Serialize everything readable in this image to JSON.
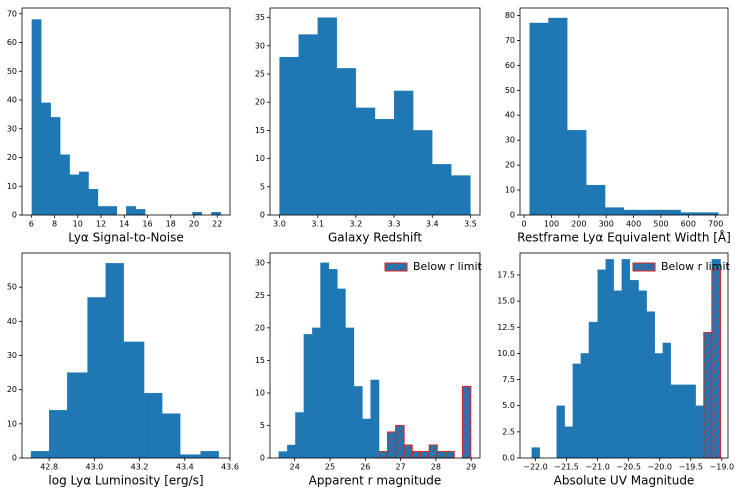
{
  "chart_data": [
    {
      "type": "histogram",
      "xlabel": "Lyα Signal-to-Noise",
      "color": "#1f77b4",
      "bins": [
        6.05,
        6.86,
        7.68,
        8.49,
        9.3,
        10.12,
        10.93,
        11.74,
        12.55,
        13.37,
        14.18,
        14.99,
        15.81,
        16.62,
        17.43,
        18.25,
        19.06,
        19.87,
        20.68,
        21.5,
        22.31
      ],
      "values": [
        68,
        39,
        34,
        21,
        14,
        15,
        9,
        3,
        3,
        0,
        3,
        2,
        0,
        0,
        0,
        0,
        0,
        1,
        0,
        1
      ],
      "xlim": [
        5.2,
        23.1
      ],
      "xticks": [
        6,
        8,
        10,
        12,
        14,
        16,
        18,
        20,
        22
      ],
      "ylim": [
        0,
        72
      ],
      "yticks": [
        0,
        10,
        20,
        30,
        40,
        50,
        60,
        70
      ]
    },
    {
      "type": "histogram",
      "xlabel": "Galaxy Redshift",
      "color": "#1f77b4",
      "bins": [
        3.0,
        3.05,
        3.1,
        3.15,
        3.2,
        3.25,
        3.3,
        3.35,
        3.4,
        3.45,
        3.5
      ],
      "values": [
        28,
        32,
        35,
        26,
        19,
        17,
        22,
        15,
        9,
        7
      ],
      "xlim": [
        2.975,
        3.525
      ],
      "xticks": [
        {
          "value": 3.0,
          "label": "3.0"
        },
        3.1,
        3.2,
        3.3,
        3.4,
        3.5
      ],
      "ylim": [
        0,
        36.7
      ],
      "yticks": [
        0,
        5,
        10,
        15,
        20,
        25,
        30,
        35
      ]
    },
    {
      "type": "histogram",
      "xlabel": "Restframe Lyα Equivalent Width [Å]",
      "color": "#1f77b4",
      "bins": [
        20,
        89,
        158,
        227,
        296,
        365,
        434,
        503,
        572,
        641,
        710
      ],
      "values": [
        77,
        79,
        34,
        12,
        3,
        2,
        2,
        2,
        1,
        1
      ],
      "xlim": [
        -15,
        745
      ],
      "xticks": [
        0,
        100,
        200,
        300,
        400,
        500,
        600,
        700
      ],
      "ylim": [
        0,
        83
      ],
      "yticks": [
        0,
        10,
        20,
        30,
        40,
        50,
        60,
        70,
        80
      ]
    },
    {
      "type": "histogram",
      "xlabel": "log Lyα Luminosity [erg/s]",
      "color": "#1f77b4",
      "bins": [
        42.72,
        42.8,
        42.88,
        42.97,
        43.05,
        43.13,
        43.22,
        43.3,
        43.38,
        43.47,
        43.55
      ],
      "values": [
        2,
        14,
        25,
        47,
        57,
        34,
        19,
        13,
        1,
        2
      ],
      "xlim": [
        42.68,
        43.6
      ],
      "xticks": [
        42.8,
        {
          "value": 43.0,
          "label": "43.0"
        },
        43.2,
        43.4,
        43.6
      ],
      "ylim": [
        0,
        60
      ],
      "yticks": [
        0,
        10,
        20,
        30,
        40,
        50
      ]
    },
    {
      "type": "histogram",
      "xlabel": "Apparent r magnitude",
      "color": "#1f77b4",
      "bins": [
        23.55,
        23.79,
        24.02,
        24.26,
        24.5,
        24.73,
        24.97,
        25.21,
        25.44,
        25.68,
        25.92,
        26.15,
        26.39,
        26.63,
        26.86,
        27.1,
        27.33,
        27.57,
        27.81,
        28.04,
        28.28,
        28.52,
        28.75,
        28.99
      ],
      "values": [
        1,
        2,
        7,
        19,
        20,
        30,
        29,
        26,
        20,
        11,
        6,
        12,
        1,
        4,
        5,
        2,
        1,
        1,
        2,
        1,
        1,
        0,
        11
      ],
      "overlay": {
        "name": "Below r limit",
        "color": "#d62728",
        "values": [
          0,
          0,
          0,
          0,
          0,
          0,
          0,
          0,
          0,
          0,
          0,
          0,
          1,
          4,
          5,
          2,
          1,
          1,
          2,
          1,
          1,
          0,
          11
        ]
      },
      "legend": "upper right",
      "xlim": [
        23.3,
        29.25
      ],
      "xticks": [
        24,
        25,
        26,
        27,
        28,
        29
      ],
      "ylim": [
        0,
        31.5
      ],
      "yticks": [
        0,
        5,
        10,
        15,
        20,
        25,
        30
      ]
    },
    {
      "type": "histogram",
      "xlabel": "Absolute UV Magnitude",
      "color": "#1f77b4",
      "bins": [
        -22.06,
        -21.93,
        -21.8,
        -21.66,
        -21.53,
        -21.4,
        -21.27,
        -21.14,
        -21.0,
        -20.87,
        -20.74,
        -20.61,
        -20.48,
        -20.34,
        -20.21,
        -20.08,
        -19.95,
        -19.82,
        -19.68,
        -19.55,
        -19.42,
        -19.29,
        -19.16,
        -19.02
      ],
      "values": [
        1,
        0,
        0,
        5,
        3,
        9,
        10,
        13,
        18,
        19,
        16,
        19,
        17,
        16,
        14,
        10,
        11,
        7,
        7,
        7,
        5,
        12,
        19
      ],
      "overlay": {
        "name": "Below r limit",
        "color": "#d62728",
        "values": [
          0,
          0,
          0,
          0,
          0,
          0,
          0,
          0,
          0,
          0,
          0,
          0,
          0,
          0,
          0,
          0,
          0,
          0,
          0,
          0,
          0,
          12,
          18
        ]
      },
      "legend": "upper right",
      "xlim": [
        -22.25,
        -18.9
      ],
      "xticks": [
        {
          "value": -22.0,
          "label": "−22.0"
        },
        {
          "value": -21.5,
          "label": "−21.5"
        },
        {
          "value": -21.0,
          "label": "−21.0"
        },
        {
          "value": -20.5,
          "label": "−20.5"
        },
        {
          "value": -20.0,
          "label": "−20.0"
        },
        {
          "value": -19.5,
          "label": "−19.5"
        },
        {
          "value": -19.0,
          "label": "−19.0"
        }
      ],
      "ylim": [
        0,
        19.6
      ],
      "yticks": [
        {
          "value": 0,
          "label": "0.0"
        },
        {
          "value": 2.5,
          "label": "2.5"
        },
        {
          "value": 5,
          "label": "5.0"
        },
        {
          "value": 7.5,
          "label": "7.5"
        },
        {
          "value": 10,
          "label": "10.0"
        },
        {
          "value": 12.5,
          "label": "12.5"
        },
        {
          "value": 15,
          "label": "15.0"
        },
        {
          "value": 17.5,
          "label": "17.5"
        }
      ]
    }
  ]
}
